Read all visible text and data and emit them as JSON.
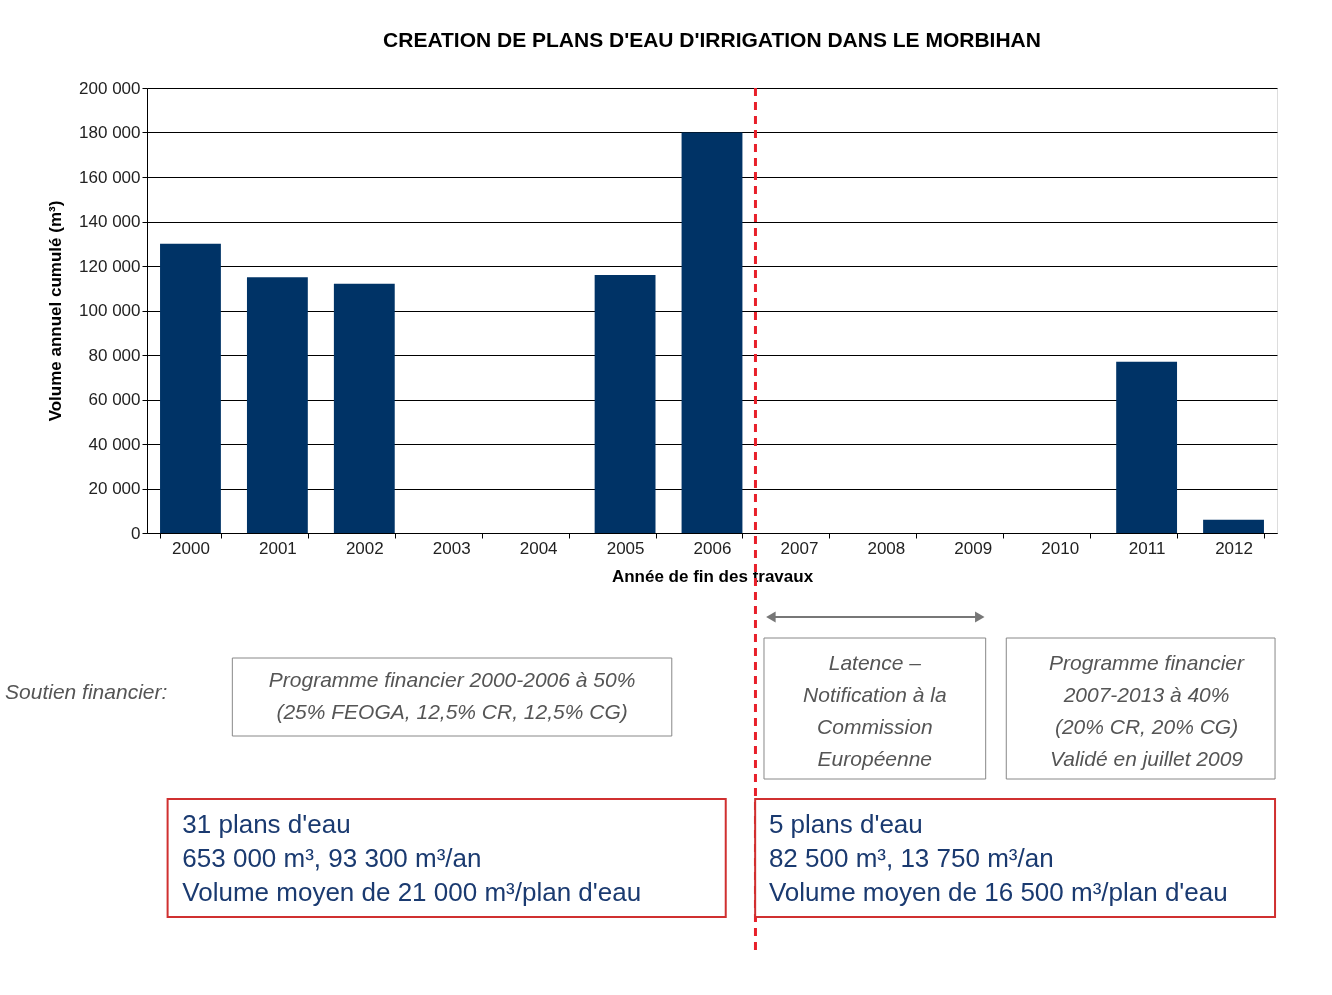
{
  "chart_data": {
    "type": "bar",
    "title": "CREATION DE PLANS D'EAU D'IRRIGATION DANS LE MORBIHAN",
    "xlabel": "Année de fin des travaux",
    "ylabel": "Volume annuel cumulé (m³)",
    "categories": [
      "2000",
      "2001",
      "2002",
      "2003",
      "2004",
      "2005",
      "2006",
      "2007",
      "2008",
      "2009",
      "2010",
      "2011",
      "2012"
    ],
    "values": [
      130000,
      115000,
      112000,
      0,
      0,
      116000,
      180000,
      0,
      0,
      0,
      0,
      77000,
      6000
    ],
    "color": "#003366",
    "ylim": [
      0,
      200000
    ],
    "yticks": [
      0,
      {
        "value": 20000,
        "label": "20 000"
      },
      {
        "value": 40000,
        "label": "40 000"
      },
      {
        "value": 60000,
        "label": "60 000"
      },
      {
        "value": 80000,
        "label": "80 000"
      },
      {
        "value": 100000,
        "label": "100 000"
      },
      {
        "value": 120000,
        "label": "120 000"
      },
      {
        "value": 140000,
        "label": "140 000"
      },
      {
        "value": 160000,
        "label": "160 000"
      },
      {
        "value": 180000,
        "label": "180 000"
      },
      {
        "value": 200000,
        "label": "200 000"
      }
    ],
    "grid": "y",
    "ref_lines": [
      {
        "axis": "x",
        "value": "2006",
        "color": "#e8202a",
        "line_style": "dashed"
      }
    ],
    "annotations": [
      "Soutien financier:",
      "Programme financier 2000-2006 à 50%\n(25% FEOGA, 12,5% CR, 12,5% CG)",
      "Latence –\nNotification à la\nCommission\nEuropéenne",
      "Programme financier\n2007-2013 à 40%\n(20% CR, 20% CG)\nValidé en juillet 2009",
      "31 plans d'eau\n653 000 m³, 93 300 m³/an\nVolume moyen de 21 000 m³/plan d'eau",
      "5 plans d'eau\n82 500 m³, 13 750 m³/an\nVolume moyen de 16 500 m³/plan d'eau"
    ]
  }
}
